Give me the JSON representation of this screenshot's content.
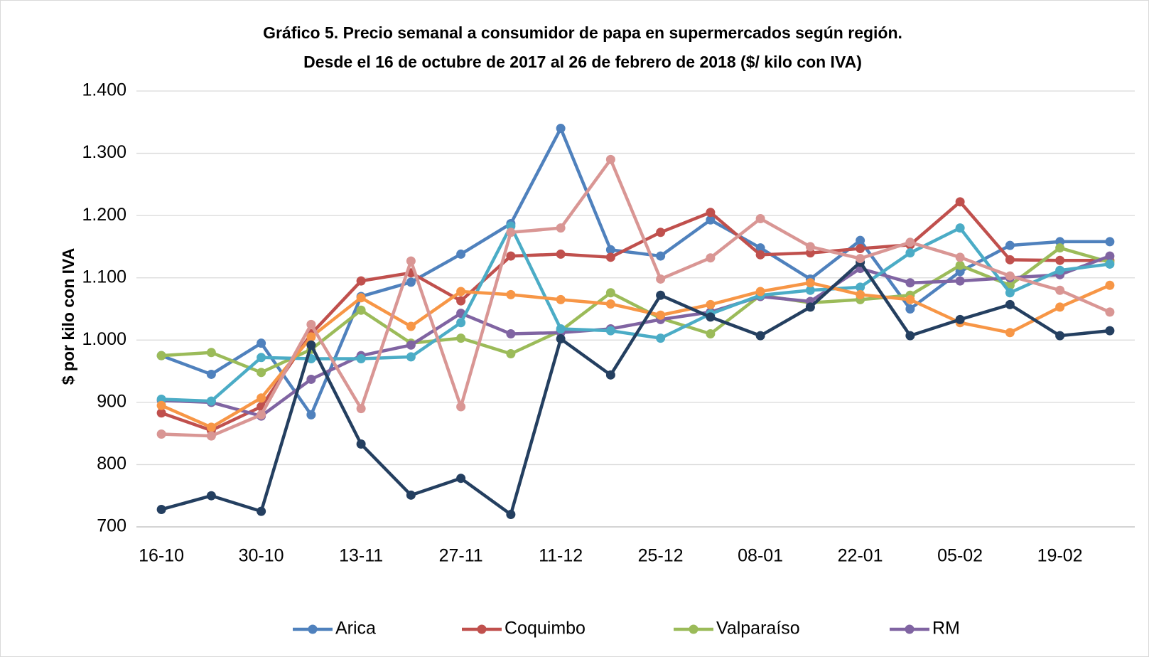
{
  "chart_data": {
    "type": "line",
    "title": "Gráfico 5. Precio semanal a consumidor de papa en supermercados según región.",
    "subtitle": "Desde el 16 de octubre de 2017 al 26 de febrero de 2018 ($/ kilo con IVA)",
    "y_label": "$ por kilo con IVA",
    "categories": [
      "16-10",
      null,
      "30-10",
      null,
      "13-11",
      null,
      "27-11",
      null,
      "11-12",
      null,
      "25-12",
      null,
      "08-01",
      null,
      "22-01",
      null,
      "05-02",
      null,
      "19-02",
      null
    ],
    "ylim": [
      700,
      1400
    ],
    "yticks": [
      700,
      800,
      900,
      {
        "value": 1000,
        "label": "1.000"
      },
      {
        "value": 1100,
        "label": "1.100"
      },
      {
        "value": 1200,
        "label": "1.200"
      },
      {
        "value": 1300,
        "label": "1.300"
      },
      {
        "value": 1400,
        "label": "1.400"
      }
    ],
    "grid": true,
    "legend": "bottom",
    "series": [
      {
        "name": "Arica",
        "color": "#4f81bd",
        "values": [
          975,
          945,
          995,
          880,
          1070,
          1093,
          1138,
          1187,
          1340,
          1145,
          1135,
          1193,
          1148,
          1098,
          1160,
          1050,
          1110,
          1152,
          1158,
          1158
        ]
      },
      {
        "name": "Coquimbo",
        "color": "#c0504d",
        "values": [
          883,
          855,
          893,
          1010,
          1095,
          1108,
          1063,
          1135,
          1138,
          1133,
          1173,
          1205,
          1137,
          1140,
          1147,
          1153,
          1222,
          1129,
          1128,
          1128
        ]
      },
      {
        "name": "Valparaíso",
        "color": "#9bbb59",
        "values": [
          975,
          980,
          948,
          985,
          1048,
          995,
          1003,
          978,
          1015,
          1076,
          1035,
          1010,
          1072,
          1060,
          1065,
          1072,
          1120,
          1088,
          1148,
          1125
        ]
      },
      {
        "name": "RM",
        "color": "#8064a2",
        "values": [
          903,
          900,
          878,
          937,
          975,
          992,
          1043,
          1010,
          1012,
          1018,
          1033,
          1045,
          1070,
          1062,
          1115,
          1092,
          1095,
          1100,
          1105,
          1135
        ]
      },
      {
        "color": "#4bacc6",
        "values": [
          905,
          902,
          972,
          970,
          970,
          973,
          1028,
          1183,
          1018,
          1015,
          1003,
          1042,
          1072,
          1080,
          1085,
          1140,
          1180,
          1076,
          1112,
          1122
        ]
      },
      {
        "color": "#f79646",
        "values": [
          895,
          860,
          907,
          1005,
          1068,
          1022,
          1078,
          1073,
          1065,
          1058,
          1040,
          1057,
          1078,
          1092,
          1073,
          1065,
          1028,
          1012,
          1053,
          1088
        ]
      },
      {
        "color": "#243f60",
        "values": [
          728,
          750,
          725,
          992,
          833,
          751,
          778,
          720,
          1002,
          944,
          1072,
          1037,
          1007,
          1053,
          1125,
          1007,
          1033,
          1057,
          1007,
          1015
        ]
      },
      {
        "color": "#d99694",
        "values": [
          849,
          846,
          880,
          1025,
          890,
          1127,
          893,
          1173,
          1180,
          1290,
          1098,
          1132,
          1195,
          1150,
          1131,
          1157,
          1133,
          1103,
          1080,
          1045
        ]
      }
    ]
  }
}
